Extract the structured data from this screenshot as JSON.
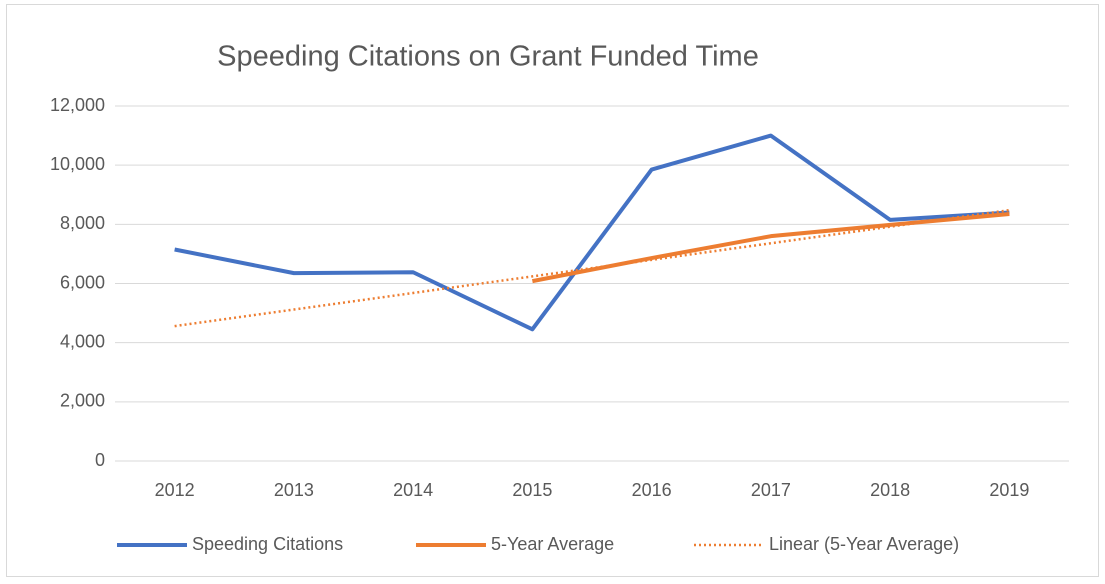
{
  "chart_data": {
    "type": "line",
    "title": "Speeding Citations on Grant Funded Time",
    "categories": [
      "2012",
      "2013",
      "2014",
      "2015",
      "2016",
      "2017",
      "2018",
      "2019"
    ],
    "series": [
      {
        "name": "Speeding Citations",
        "color": "#4472c4",
        "style": "solid",
        "values": [
          7150,
          6350,
          6380,
          4450,
          9850,
          11000,
          8150,
          8400
        ]
      },
      {
        "name": "5-Year Average",
        "color": "#ed7d31",
        "style": "solid",
        "values": [
          null,
          null,
          null,
          6080,
          6860,
          7600,
          7980,
          8350
        ]
      },
      {
        "name": "Linear (5-Year Average)",
        "color": "#ed7d31",
        "style": "dotted",
        "values": [
          4560,
          5120,
          5680,
          6240,
          6800,
          7360,
          7920,
          8480
        ]
      }
    ],
    "ylim": [
      0,
      12000
    ],
    "yticks": [
      0,
      {
        "value": 2000,
        "label": "2,000"
      },
      {
        "value": 4000,
        "label": "4,000"
      },
      {
        "value": 6000,
        "label": "6,000"
      },
      {
        "value": 8000,
        "label": "8,000"
      },
      {
        "value": 10000,
        "label": "10,000"
      },
      {
        "value": 12000,
        "label": "12,000"
      }
    ],
    "grid": true,
    "legend": "bottom"
  }
}
